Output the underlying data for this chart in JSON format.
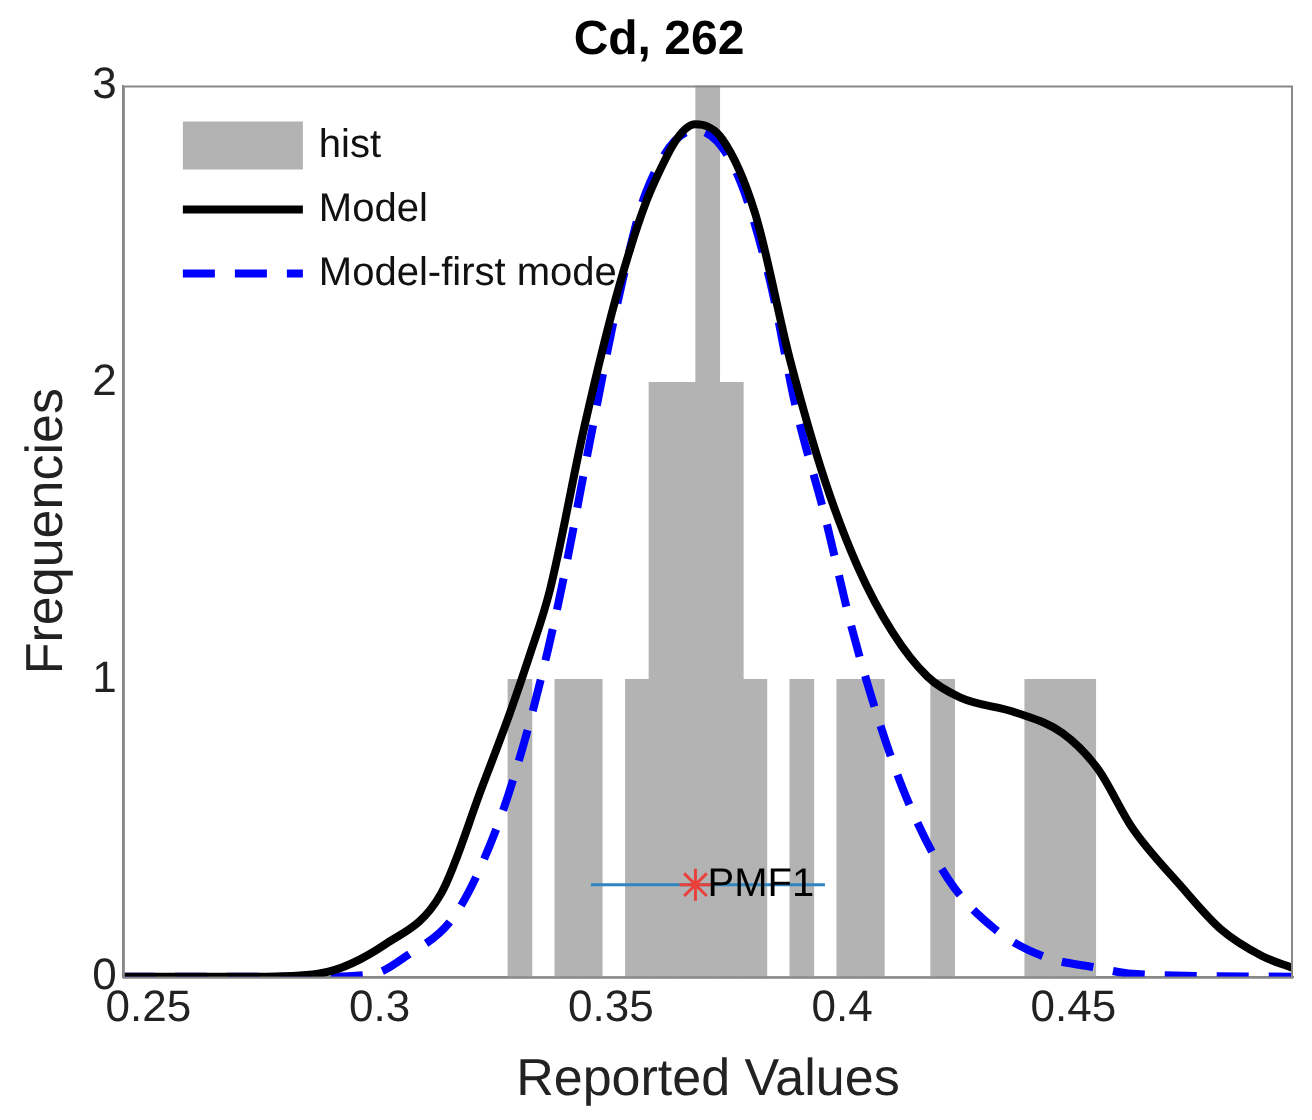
{
  "chart_data": {
    "type": "histogram",
    "title": "Cd, 262",
    "xlabel": "Reported Values",
    "ylabel": "Frequencies",
    "xlim": [
      0.2445,
      0.4975
    ],
    "xticks": [
      0.25,
      0.3,
      0.35,
      0.4,
      0.45
    ],
    "ylim": [
      0,
      3
    ],
    "yticks": [
      0,
      1,
      2,
      3
    ],
    "grid": false,
    "legend": "top left",
    "annotations": [
      {
        "text": "PMF1",
        "x": 0.3683,
        "y": 0.31
      }
    ],
    "series": [
      {
        "name": "hist",
        "color": "#b3b3b3",
        "bins": [
          0.3278,
          0.3329,
          0.338,
          0.343,
          0.3481,
          0.3532,
          0.3583,
          0.3634,
          0.3684,
          0.3735,
          0.3786,
          0.3837,
          0.3888,
          0.3938,
          0.3989,
          0.404,
          0.4091,
          0.4142,
          0.4192,
          0.4243,
          0.4294,
          0.4345,
          0.4396,
          0.4446,
          0.4497,
          0.4548
        ],
        "values": [
          1,
          0,
          1,
          1,
          0,
          1,
          2,
          2,
          3,
          2,
          1,
          0,
          1,
          0,
          1,
          1,
          0,
          0,
          1,
          0,
          0,
          0,
          1,
          1,
          1
        ]
      },
      {
        "type": "line",
        "name": "Model",
        "color": "#000000",
        "line_style": "solid",
        "x": [
          0.2445,
          0.2734,
          0.2867,
          0.3013,
          0.3133,
          0.3222,
          0.328,
          0.3324,
          0.3368,
          0.3444,
          0.3519,
          0.359,
          0.3683,
          0.3741,
          0.3812,
          0.3887,
          0.3963,
          0.4034,
          0.4109,
          0.4185,
          0.4256,
          0.4375,
          0.4477,
          0.4553,
          0.4628,
          0.473,
          0.4819,
          0.4908,
          0.4974
        ],
        "values": [
          0,
          0,
          0.01,
          0.11,
          0.28,
          0.64,
          0.88,
          1.08,
          1.3,
          1.86,
          2.33,
          2.66,
          2.87,
          2.82,
          2.57,
          2.08,
          1.67,
          1.38,
          1.16,
          1.01,
          0.94,
          0.89,
          0.82,
          0.7,
          0.5,
          0.31,
          0.16,
          0.07,
          0.03
        ]
      },
      {
        "type": "line",
        "name": "Model-first mode",
        "color": "#0000ff",
        "line_style": "dashed",
        "x": [
          0.2445,
          0.2867,
          0.2987,
          0.3058,
          0.3164,
          0.3253,
          0.3311,
          0.3364,
          0.3399,
          0.3457,
          0.3519,
          0.3576,
          0.3683,
          0.3768,
          0.3843,
          0.3901,
          0.3963,
          0.402,
          0.4078,
          0.414,
          0.4229,
          0.4331,
          0.4433,
          0.4553,
          0.4628,
          0.4974
        ],
        "values": [
          0,
          0,
          0.01,
          0.07,
          0.21,
          0.5,
          0.78,
          1.1,
          1.35,
          1.82,
          2.3,
          2.64,
          2.85,
          2.72,
          2.35,
          1.91,
          1.55,
          1.18,
          0.87,
          0.6,
          0.33,
          0.16,
          0.07,
          0.03,
          0.01,
          0
        ]
      },
      {
        "type": "line",
        "color": "#2e86c1",
        "line_style": "solid",
        "x": [
          0.3457,
          0.3963
        ],
        "values": [
          0.31,
          0.31
        ]
      },
      {
        "type": "scatter",
        "color": "#e8413c",
        "marker": "cross",
        "x": [
          0.3683
        ],
        "values": [
          0.31
        ]
      }
    ]
  }
}
